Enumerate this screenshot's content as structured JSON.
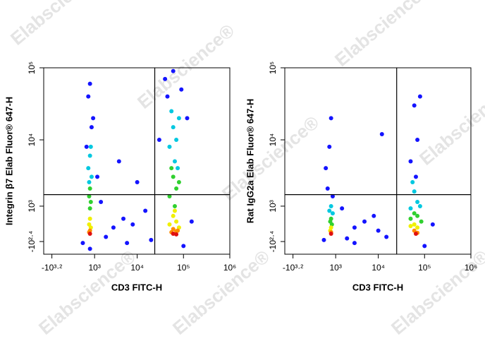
{
  "watermark": "Elabscience®",
  "chart_data": [
    {
      "type": "scatter",
      "xlabel": "CD3 FITC-H",
      "ylabel": "Integrin β7 Elab Fluor® 647-H",
      "xscale": "biexponential",
      "yscale": "biexponential",
      "xlim": [
        -2500,
        1000000
      ],
      "ylim": [
        -700,
        100000
      ],
      "xticks": [
        {
          "value": -1585,
          "label": "-10³·²"
        },
        {
          "value": 1000,
          "label": "10³"
        },
        {
          "value": 10000,
          "label": "10⁴"
        },
        {
          "value": 100000,
          "label": "10⁵"
        },
        {
          "value": 1000000,
          "label": "10⁶"
        }
      ],
      "yticks": [
        {
          "value": -251,
          "label": "-10²·⁴"
        },
        {
          "value": 1000,
          "label": "10³"
        },
        {
          "value": 10000,
          "label": "10⁴"
        },
        {
          "value": 100000,
          "label": "10⁵"
        }
      ],
      "gate": {
        "x": 24000,
        "y": 1600
      },
      "gate_color": "#000000",
      "series": [
        {
          "color": "#1414ff",
          "x": [
            500,
            900,
            600,
            1200,
            700,
            3000,
            5000,
            2000,
            8000,
            15000,
            4000,
            40000,
            90000,
            60000,
            120000,
            30000,
            150000,
            20000,
            1500,
            10000,
            300,
            700,
            100000,
            6000,
            45000,
            800
          ],
          "values": [
            8000,
            20000,
            40000,
            3000,
            60000,
            200,
            500,
            -100,
            300,
            800,
            5000,
            70000,
            50000,
            90000,
            20000,
            10000,
            400,
            -200,
            1200,
            2500,
            -300,
            -500,
            -400,
            -300,
            40000,
            15000
          ]
        },
        {
          "color": "#00c8e0",
          "x": [
            700,
            600,
            800,
            650,
            750,
            60000,
            70000,
            50000,
            80000,
            65000,
            55000,
            75000
          ],
          "values": [
            6000,
            4000,
            3000,
            2500,
            8000,
            15000,
            10000,
            8000,
            20000,
            5000,
            25000,
            4000
          ]
        },
        {
          "color": "#30d030",
          "x": [
            700,
            650,
            750,
            700,
            60000,
            70000,
            50000,
            80000,
            65000,
            55000
          ],
          "values": [
            2000,
            1500,
            1200,
            900,
            3000,
            2000,
            1500,
            2500,
            1000,
            4000
          ]
        },
        {
          "color": "#f0f000",
          "x": [
            700,
            650,
            750,
            60000,
            70000,
            50000,
            80000,
            65000
          ],
          "values": [
            500,
            300,
            200,
            600,
            400,
            300,
            200,
            800
          ]
        },
        {
          "color": "#ff8c00",
          "x": [
            700,
            650,
            60000,
            70000,
            55000,
            75000
          ],
          "values": [
            100,
            50,
            150,
            80,
            50,
            100
          ]
        },
        {
          "color": "#e01010",
          "x": [
            700,
            60000,
            70000
          ],
          "values": [
            0,
            0,
            -20
          ]
        }
      ]
    },
    {
      "type": "scatter",
      "xlabel": "CD3 FITC-H",
      "ylabel": "Rat IgG2a Elab Fluor® 647-H",
      "xscale": "biexponential",
      "yscale": "biexponential",
      "xlim": [
        -2500,
        1000000
      ],
      "ylim": [
        -700,
        100000
      ],
      "xticks": [
        {
          "value": -1585,
          "label": "-10³·²"
        },
        {
          "value": 1000,
          "label": "10³"
        },
        {
          "value": 10000,
          "label": "10⁴"
        },
        {
          "value": 100000,
          "label": "10⁵"
        },
        {
          "value": 1000000,
          "label": "10⁶"
        }
      ],
      "yticks": [
        {
          "value": -251,
          "label": "-10²·⁴"
        },
        {
          "value": 1000,
          "label": "10³"
        },
        {
          "value": 10000,
          "label": "10⁴"
        },
        {
          "value": 100000,
          "label": "10⁵"
        }
      ],
      "gate": {
        "x": 25000,
        "y": 1600
      },
      "gate_color": "#000000",
      "series": [
        {
          "color": "#1414ff",
          "x": [
            500,
            600,
            700,
            400,
            800,
            60000,
            70000,
            50000,
            80000,
            65000,
            3000,
            5000,
            10000,
            8000,
            2000,
            15000,
            1500,
            12000,
            3000,
            100000,
            300,
            150000
          ],
          "values": [
            2000,
            8000,
            20000,
            4000,
            1500,
            30000,
            10000,
            5000,
            40000,
            3000,
            200,
            400,
            100,
            600,
            -150,
            -100,
            900,
            12000,
            -300,
            -400,
            -200,
            300
          ]
        },
        {
          "color": "#00c8e0",
          "x": [
            700,
            600,
            800,
            60000,
            70000,
            50000,
            80000,
            55000
          ],
          "values": [
            1000,
            800,
            700,
            1800,
            1200,
            900,
            1000,
            2500
          ]
        },
        {
          "color": "#30d030",
          "x": [
            700,
            650,
            750,
            60000,
            70000,
            50000,
            85000
          ],
          "values": [
            500,
            400,
            300,
            700,
            600,
            500,
            400
          ]
        },
        {
          "color": "#f0f000",
          "x": [
            700,
            650,
            60000,
            70000,
            50000
          ],
          "values": [
            200,
            100,
            300,
            200,
            250
          ]
        },
        {
          "color": "#ff8c00",
          "x": [
            700,
            60000,
            70000
          ],
          "values": [
            50,
            100,
            30
          ]
        },
        {
          "color": "#e01010",
          "x": [
            700,
            65000
          ],
          "values": [
            0,
            0
          ]
        }
      ]
    }
  ]
}
